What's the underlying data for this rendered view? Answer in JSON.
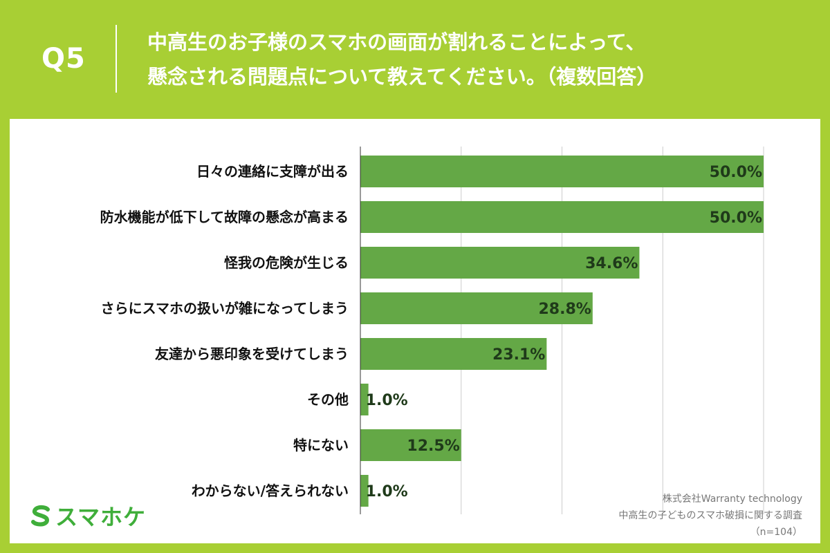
{
  "question": {
    "number": "Q5",
    "line1": "中高生のお子様のスマホの画面が割れることによって、",
    "line2": "懸念される問題点について教えてください。（複数回答）"
  },
  "brand": {
    "logo_text": "スマホケ",
    "logo_icon": "s-logo-icon",
    "color": "#3fae3a"
  },
  "source": {
    "company": "株式会社Warranty technology",
    "survey": "中高生の子どものスマホ破損に関する調査",
    "sample": "（n=104）"
  },
  "colors": {
    "background": "#a8cf34",
    "bar": "#64a846",
    "grid": "#cccccc"
  },
  "chart_data": {
    "type": "bar",
    "orientation": "horizontal",
    "unit": "%",
    "xlim": [
      0,
      50
    ],
    "grid": true,
    "categories": [
      "日々の連絡に支障が出る",
      "防水機能が低下して故障の懸念が高まる",
      "怪我の危険が生じる",
      "さらにスマホの扱いが雑になってしまう",
      "友達から悪印象を受けてしまう",
      "その他",
      "特にない",
      "わからない/答えられない"
    ],
    "values": [
      50.0,
      50.0,
      34.6,
      28.8,
      23.1,
      1.0,
      12.5,
      1.0
    ],
    "value_labels": [
      "50.0%",
      "50.0%",
      "34.6%",
      "28.8%",
      "23.1%",
      "1.0%",
      "12.5%",
      "1.0%"
    ]
  }
}
